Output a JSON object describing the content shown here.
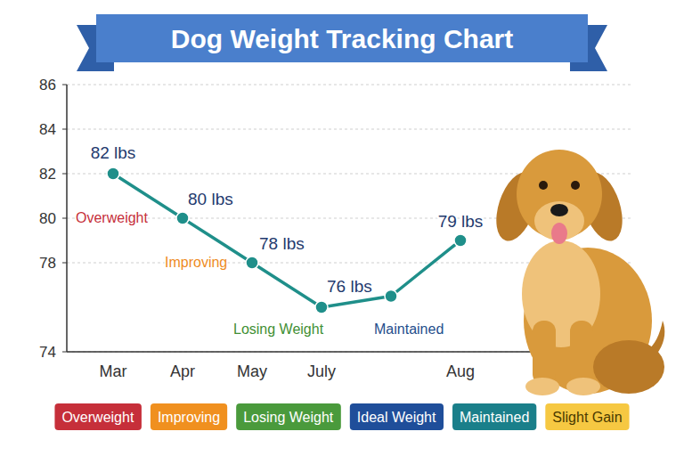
{
  "chart_data": {
    "type": "line",
    "title": "Dog Weight Tracking Chart",
    "categories": [
      "Mar",
      "Apr",
      "May",
      "July",
      null,
      "Aug"
    ],
    "values": [
      82,
      80,
      78,
      76,
      76.5,
      79
    ],
    "value_labels": [
      "82 lbs",
      "80 lbs",
      "78 lbs",
      "76 lbs",
      null,
      "79 lbs"
    ],
    "data_labels": true,
    "color": "#1f8f8a",
    "marker": "circle",
    "ylim": [
      74,
      86
    ],
    "yticks": [
      74,
      78,
      80,
      82,
      84,
      86
    ],
    "grid": true,
    "annotations": [
      {
        "text": "Overweight",
        "color": "#c62f3a"
      },
      {
        "text": "Improving",
        "color": "#ee8b1e"
      },
      {
        "text": "Losing Weight",
        "color": "#3f8f34"
      },
      {
        "text": "Maintained",
        "color": "#1f4e8c"
      }
    ],
    "legend_items": [
      {
        "name": "Overweight",
        "color": "#c62f3a"
      },
      {
        "name": "Improving",
        "color": "#f0901f"
      },
      {
        "name": "Losing Weight",
        "color": "#4a9a3c"
      },
      {
        "name": "Ideal Weight",
        "color": "#1f4e9a"
      },
      {
        "name": "Maintained",
        "color": "#1a7f8a"
      },
      {
        "name": "Slight Gain",
        "color": "#f6c842"
      }
    ]
  }
}
